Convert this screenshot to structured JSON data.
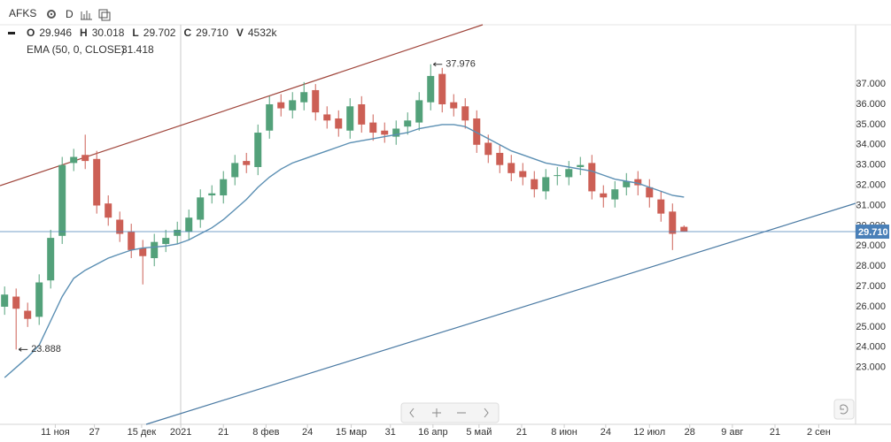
{
  "header": {
    "interval": "D",
    "ohlcv": [
      {
        "key": "O",
        "value": 29.946
      },
      {
        "key": "H",
        "value": 30.018
      },
      {
        "key": "L",
        "value": 29.702
      },
      {
        "key": "C",
        "value": 29.71,
        "label": "29.710"
      },
      {
        "key": "V",
        "value": 4532000,
        "label": "4532k"
      }
    ]
  },
  "chart_data": {
    "type": "candlestick",
    "series": [
      {
        "name": "AFKS",
        "up_color": "#53a17a",
        "down_color": "#cc5f55",
        "open": [
          26.0,
          26.5,
          25.8,
          25.5,
          27.3,
          29.5,
          33.1,
          33.5,
          33.3,
          31.1,
          30.3,
          29.7,
          28.9,
          28.4,
          29.1,
          29.5,
          29.7,
          30.3,
          31.5,
          31.5,
          32.4,
          33.2,
          32.9,
          34.7,
          36.1,
          35.7,
          36.1,
          36.7,
          35.5,
          35.3,
          34.7,
          36.0,
          35.1,
          34.7,
          34.4,
          34.9,
          35.1,
          36.1,
          37.5,
          36.1,
          35.9,
          35.3,
          34.1,
          33.6,
          33.1,
          32.7,
          32.3,
          31.7,
          32.5,
          32.4,
          32.9,
          33.1,
          31.6,
          31.3,
          31.9,
          32.3,
          31.9,
          31.3,
          30.7,
          29.946
        ],
        "high": [
          27.0,
          26.9,
          26.2,
          27.6,
          29.8,
          33.4,
          33.8,
          34.5,
          33.7,
          31.5,
          30.7,
          30.1,
          29.3,
          29.6,
          29.8,
          30.2,
          30.8,
          31.8,
          32.0,
          32.7,
          33.5,
          33.6,
          35.0,
          36.4,
          36.5,
          36.6,
          37.1,
          37.0,
          35.9,
          35.7,
          36.3,
          36.4,
          35.5,
          35.1,
          35.2,
          35.6,
          36.6,
          37.976,
          37.8,
          36.5,
          36.3,
          35.7,
          34.5,
          34.0,
          33.5,
          33.1,
          32.7,
          32.8,
          32.9,
          33.2,
          33.4,
          33.5,
          32.0,
          32.2,
          32.6,
          32.7,
          32.3,
          31.7,
          31.1,
          30.018
        ],
        "low": [
          25.6,
          23.888,
          25.0,
          25.1,
          26.9,
          29.1,
          32.7,
          32.8,
          30.6,
          30.0,
          29.2,
          28.4,
          27.1,
          28.0,
          28.7,
          29.1,
          29.3,
          29.9,
          31.1,
          31.1,
          32.0,
          32.6,
          32.5,
          34.3,
          35.4,
          35.3,
          35.7,
          35.2,
          34.8,
          34.4,
          34.3,
          34.6,
          34.2,
          34.1,
          34.0,
          34.5,
          34.7,
          35.7,
          35.6,
          35.4,
          34.8,
          33.6,
          33.1,
          32.6,
          32.2,
          32.0,
          31.4,
          31.3,
          32.0,
          32.0,
          32.5,
          31.3,
          30.9,
          30.9,
          31.5,
          31.5,
          30.9,
          30.2,
          28.8,
          29.702
        ],
        "close": [
          26.6,
          25.9,
          25.4,
          27.2,
          29.4,
          33.0,
          33.4,
          33.2,
          31.0,
          30.4,
          29.6,
          28.8,
          28.5,
          29.2,
          29.4,
          29.8,
          30.4,
          31.4,
          31.6,
          32.3,
          33.1,
          33.0,
          34.6,
          36.0,
          35.8,
          36.2,
          36.6,
          35.6,
          35.2,
          34.8,
          35.9,
          35.0,
          34.6,
          34.5,
          34.8,
          35.2,
          36.2,
          37.4,
          36.0,
          35.8,
          35.2,
          34.0,
          33.5,
          33.0,
          32.6,
          32.4,
          31.8,
          32.4,
          32.5,
          32.8,
          33.0,
          31.7,
          31.4,
          31.8,
          32.2,
          32.0,
          31.4,
          30.6,
          29.6,
          29.71
        ]
      },
      {
        "name": "EMA (50, 0, CLOSE)",
        "type": "line",
        "color": "#5b8fb3",
        "values": [
          22.5,
          23.0,
          23.5,
          24.1,
          25.3,
          26.5,
          27.4,
          27.8,
          28.1,
          28.4,
          28.6,
          28.8,
          28.9,
          28.95,
          29.0,
          29.1,
          29.3,
          29.6,
          29.9,
          30.3,
          30.8,
          31.3,
          31.9,
          32.4,
          32.8,
          33.1,
          33.3,
          33.5,
          33.7,
          33.9,
          34.1,
          34.2,
          34.3,
          34.4,
          34.5,
          34.6,
          34.8,
          34.9,
          35.0,
          35.0,
          34.9,
          34.6,
          34.3,
          34.0,
          33.7,
          33.5,
          33.3,
          33.1,
          33.0,
          32.9,
          32.8,
          32.7,
          32.5,
          32.3,
          32.2,
          32.1,
          31.9,
          31.7,
          31.5,
          31.418
        ]
      }
    ],
    "xlim": [
      -0.4,
      73.9
    ],
    "xticks": [
      {
        "value": 4.4,
        "label": "11 ноя"
      },
      {
        "value": 7.8,
        "label": "27"
      },
      {
        "value": 11.9,
        "label": "15 дек"
      },
      {
        "value": 15.3,
        "label": "2021"
      },
      {
        "value": 19.0,
        "label": "21"
      },
      {
        "value": 22.7,
        "label": "8 фев"
      },
      {
        "value": 26.3,
        "label": "24"
      },
      {
        "value": 30.1,
        "label": "15 мар"
      },
      {
        "value": 33.5,
        "label": "31"
      },
      {
        "value": 37.2,
        "label": "16 апр"
      },
      {
        "value": 41.2,
        "label": "5 май"
      },
      {
        "value": 44.9,
        "label": "21"
      },
      {
        "value": 48.6,
        "label": "8 июн"
      },
      {
        "value": 52.2,
        "label": "24"
      },
      {
        "value": 56.0,
        "label": "12 июл"
      },
      {
        "value": 59.5,
        "label": "28"
      },
      {
        "value": 63.2,
        "label": "9 авг"
      },
      {
        "value": 66.9,
        "label": "21"
      },
      {
        "value": 70.7,
        "label": "2 сен"
      }
    ],
    "ylim": [
      20.19,
      39.93
    ],
    "yticks": [
      {
        "value": 23,
        "label": "23.000"
      },
      {
        "value": 24,
        "label": "24.000"
      },
      {
        "value": 25,
        "label": "25.000"
      },
      {
        "value": 26,
        "label": "26.000"
      },
      {
        "value": 27,
        "label": "27.000"
      },
      {
        "value": 28,
        "label": "28.000"
      },
      {
        "value": 29,
        "label": "29.000"
      },
      {
        "value": 30,
        "label": "30.000"
      },
      {
        "value": 31,
        "label": "31.000"
      },
      {
        "value": 32,
        "label": "32.000"
      },
      {
        "value": 33,
        "label": "33.000"
      },
      {
        "value": 34,
        "label": "34.000"
      },
      {
        "value": 35,
        "label": "35.000"
      },
      {
        "value": 36,
        "label": "36.000"
      },
      {
        "value": 37,
        "label": "37.000"
      }
    ],
    "grid": false,
    "last_price": {
      "value": 29.71,
      "label": "29.710",
      "color": "#4a80b8"
    },
    "annotations": [
      {
        "candle": 37,
        "field": "high"
      },
      {
        "candle": 1,
        "field": "low"
      }
    ]
  }
}
